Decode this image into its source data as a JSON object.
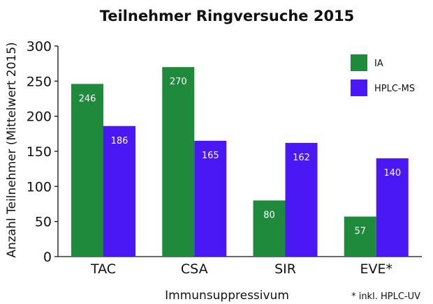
{
  "chart_data": {
    "type": "bar",
    "title": "Teilnehmer Ringversuche 2015",
    "xlabel": "Immunsuppressivum",
    "ylabel": "Anzahl Teilnehmer (Mittelwert 2015)",
    "categories": [
      "TAC",
      "CSA",
      "SIR",
      "EVE*"
    ],
    "series": [
      {
        "name": "IA",
        "values": [
          246,
          270,
          80,
          57
        ],
        "color": "#1f8a3c"
      },
      {
        "name": "HPLC-MS",
        "values": [
          186,
          165,
          162,
          140
        ],
        "color": "#4a17f5"
      }
    ],
    "ylim": [
      0,
      300
    ],
    "yticks": [
      0,
      50,
      100,
      150,
      200,
      250,
      300
    ],
    "grid": false,
    "legend_position": "top-right",
    "footnote": "* inkl. HPLC-UV"
  }
}
